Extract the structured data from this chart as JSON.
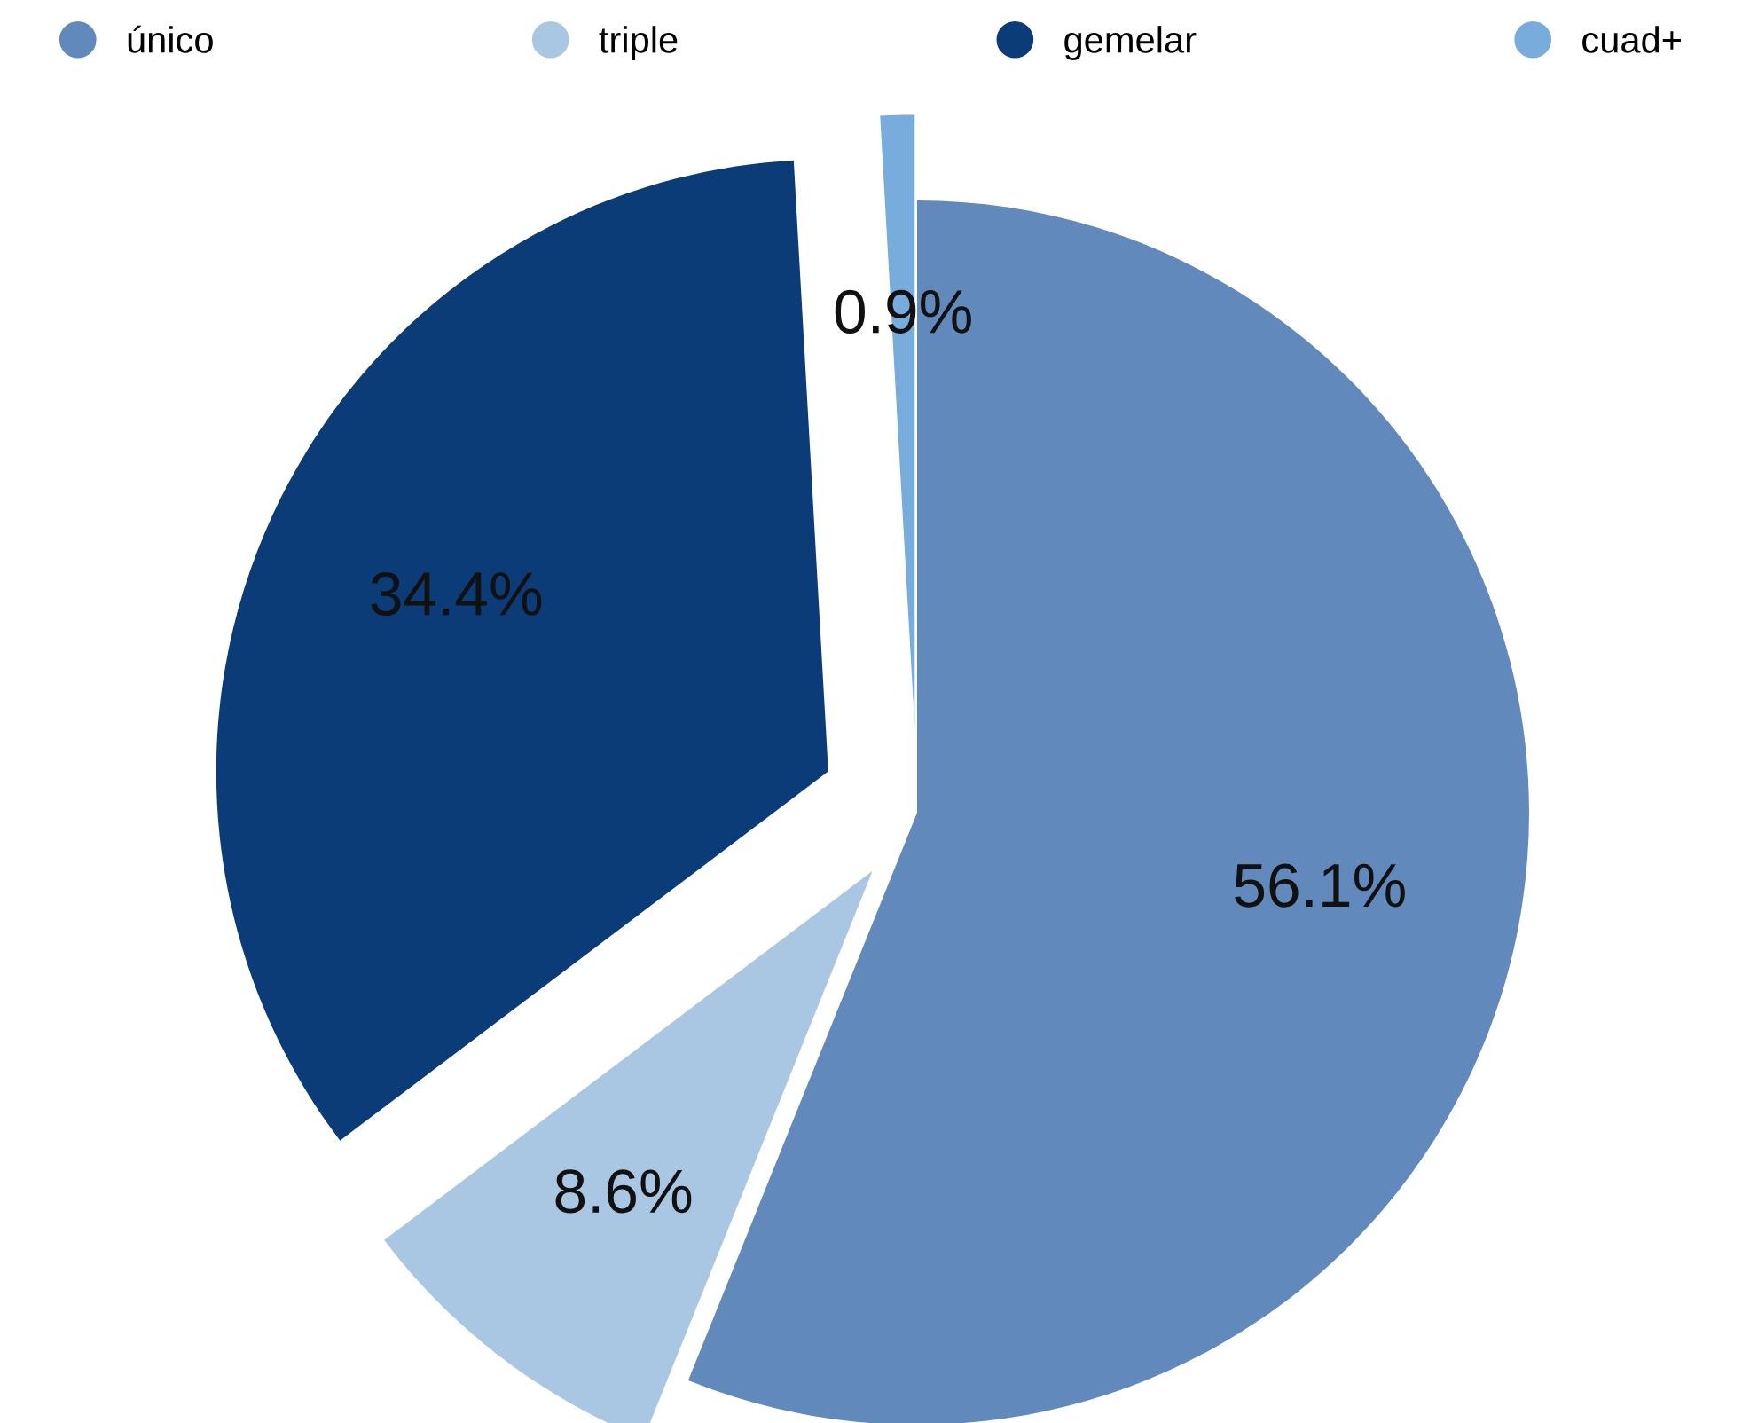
{
  "chart_data": {
    "type": "pie",
    "categories": [
      "único",
      "triple",
      "gemelar",
      "cuad+"
    ],
    "values": [
      56.1,
      8.6,
      34.4,
      0.9
    ],
    "colors": [
      "#6189bb",
      "#a9c6e3",
      "#0c3c78",
      "#78acdc"
    ],
    "value_labels": [
      "56.1%",
      "8.6%",
      "34.4%",
      "0.9%"
    ],
    "legend": "top"
  }
}
